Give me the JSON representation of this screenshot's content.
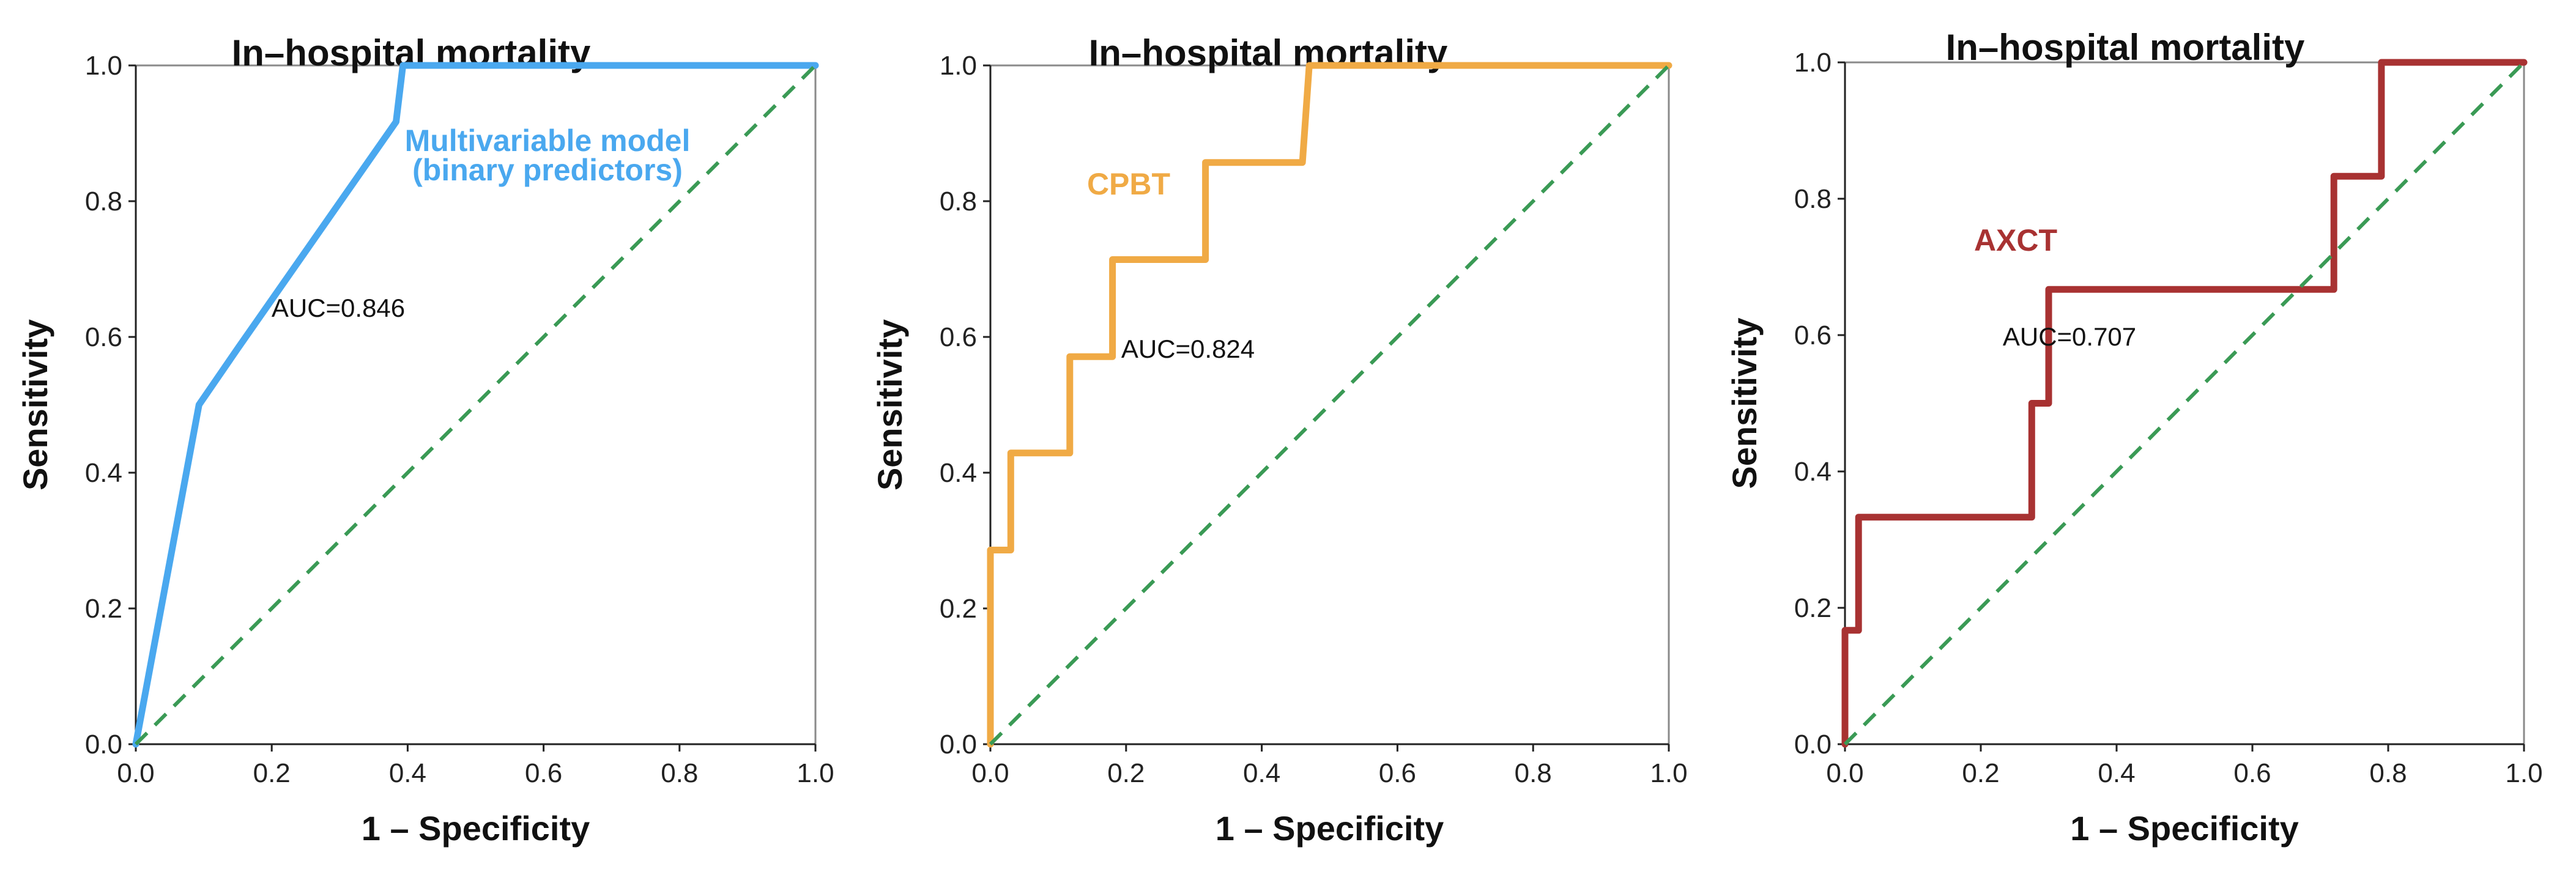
{
  "chart_data": [
    {
      "type": "line",
      "title": "In–hospital mortality",
      "xlabel": "1 – Specificity",
      "ylabel": "Sensitivity",
      "xlim": [
        0,
        1
      ],
      "ylim": [
        0,
        1
      ],
      "xticks": [
        "0.0",
        "0.2",
        "0.4",
        "0.6",
        "0.8",
        "1.0"
      ],
      "yticks": [
        "0.0",
        "0.2",
        "0.4",
        "0.6",
        "0.8",
        "1.0"
      ],
      "grid": false,
      "annotation": "AUC=0.846",
      "series": [
        {
          "name": "Multivariable model (binary predictors)",
          "label_lines": [
            "Multivariable model",
            "(binary predictors)"
          ],
          "color": "#4aa8ef",
          "x": [
            0.0,
            0.093,
            0.15,
            0.383,
            0.393,
            1.0
          ],
          "y": [
            0.0,
            0.5,
            0.583,
            0.917,
            1.0,
            1.0
          ]
        },
        {
          "name": "Reference",
          "color": "#3a9a55",
          "dashed": true,
          "x": [
            0,
            1
          ],
          "y": [
            0,
            1
          ]
        }
      ]
    },
    {
      "type": "line",
      "title": "In–hospital mortality",
      "xlabel": "1 – Specificity",
      "ylabel": "Sensitivity",
      "xlim": [
        0,
        1
      ],
      "ylim": [
        0,
        1
      ],
      "xticks": [
        "0.0",
        "0.2",
        "0.4",
        "0.6",
        "0.8",
        "1.0"
      ],
      "yticks": [
        "0.0",
        "0.2",
        "0.4",
        "0.6",
        "0.8",
        "1.0"
      ],
      "grid": false,
      "annotation": "AUC=0.824",
      "series": [
        {
          "name": "CPBT",
          "label_lines": [
            "CPBT"
          ],
          "color": "#f0aa45",
          "x": [
            0.0,
            0.0,
            0.03,
            0.03,
            0.117,
            0.117,
            0.18,
            0.18,
            0.317,
            0.317,
            0.46,
            0.47,
            1.0
          ],
          "y": [
            0.0,
            0.286,
            0.286,
            0.429,
            0.429,
            0.571,
            0.571,
            0.714,
            0.714,
            0.857,
            0.857,
            1.0,
            1.0
          ]
        },
        {
          "name": "Reference",
          "color": "#3a9a55",
          "dashed": true,
          "x": [
            0,
            1
          ],
          "y": [
            0,
            1
          ]
        }
      ]
    },
    {
      "type": "line",
      "title": "In–hospital mortality",
      "xlabel": "1 – Specificity",
      "ylabel": "Sensitivity",
      "xlim": [
        0,
        1
      ],
      "ylim": [
        0,
        1
      ],
      "xticks": [
        "0.0",
        "0.2",
        "0.4",
        "0.6",
        "0.8",
        "1.0"
      ],
      "yticks": [
        "0.0",
        "0.2",
        "0.4",
        "0.6",
        "0.8",
        "1.0"
      ],
      "grid": false,
      "annotation": "AUC=0.707",
      "series": [
        {
          "name": "AXCT",
          "label_lines": [
            "AXCT"
          ],
          "color": "#a83232",
          "x": [
            0.0,
            0.0,
            0.02,
            0.02,
            0.275,
            0.275,
            0.29,
            0.29,
            0.3,
            0.3,
            0.72,
            0.72,
            0.79,
            0.79,
            1.0
          ],
          "y": [
            0.0,
            0.167,
            0.167,
            0.333,
            0.333,
            0.5,
            0.5,
            0.5,
            0.5,
            0.667,
            0.667,
            0.833,
            0.833,
            1.0,
            1.0
          ]
        },
        {
          "name": "Reference",
          "color": "#3a9a55",
          "dashed": true,
          "x": [
            0,
            1
          ],
          "y": [
            0,
            1
          ]
        }
      ]
    }
  ]
}
